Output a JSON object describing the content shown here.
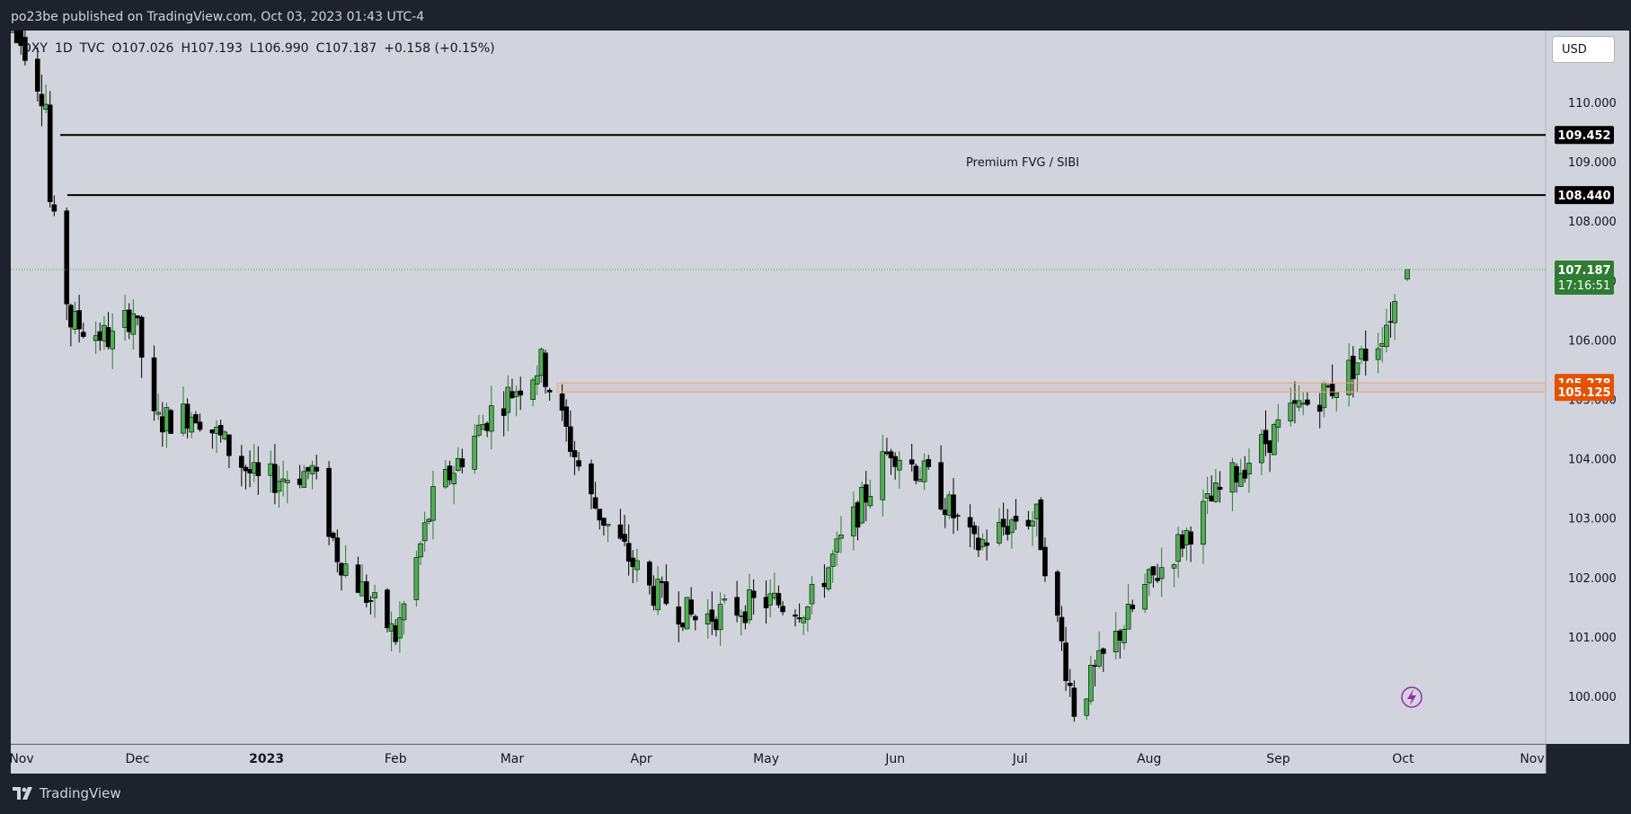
{
  "header": {
    "title": "po23be published on TradingView.com, Oct 03, 2023 01:43 UTC-4"
  },
  "legend": {
    "symbol": "DXY",
    "interval": "1D",
    "source": "TVC",
    "open": "O107.026",
    "high": "H107.193",
    "low": "L106.990",
    "close": "C107.187",
    "change": "+0.158 (+0.15%)"
  },
  "currency_button": "USD",
  "footer": {
    "brand": "TradingView"
  },
  "colors": {
    "background": "#d1d4dc",
    "frame": "#1e222d",
    "bull": "#4caf50",
    "bear": "#000000",
    "current_price": "#2e7d32",
    "zone": "#e65100",
    "level": "#000000"
  },
  "chart_data": {
    "type": "candlestick",
    "symbol": "DXY",
    "timeframe": "1D",
    "y_ticks": [
      "100.000",
      "101.000",
      "102.000",
      "103.000",
      "104.000",
      "105.000",
      "106.000",
      "107.000",
      "108.000",
      "109.000",
      "110.000"
    ],
    "x_ticks": [
      "Nov",
      "Dec",
      "2023",
      "Feb",
      "Mar",
      "Apr",
      "May",
      "Jun",
      "Jul",
      "Aug",
      "Sep",
      "Oct",
      "Nov"
    ],
    "ylim": [
      99.2,
      111.4
    ],
    "levels": [
      {
        "name": "fvg-top",
        "value": 109.452,
        "label": "109.452"
      },
      {
        "name": "fvg-bottom",
        "value": 108.44,
        "label": "108.440"
      }
    ],
    "zone": {
      "top": 105.278,
      "bottom": 105.125,
      "top_label": "105.278",
      "bottom_label": "105.125"
    },
    "annotation": "Premium FVG / SIBI",
    "current_price": {
      "value": 107.187,
      "label": "107.187",
      "countdown": "17:16:51"
    },
    "monthly_path": [
      [
        "2022-11-01",
        111.5
      ],
      [
        "2022-11-09",
        110.0
      ],
      [
        "2022-11-10",
        108.3
      ],
      [
        "2022-11-15",
        106.3
      ],
      [
        "2022-11-25",
        106.0
      ],
      [
        "2022-11-30",
        106.5
      ],
      [
        "2022-12-05",
        104.6
      ],
      [
        "2022-12-15",
        104.8
      ],
      [
        "2022-12-30",
        103.6
      ],
      [
        "2023-01-12",
        103.8
      ],
      [
        "2023-01-18",
        102.4
      ],
      [
        "2023-02-01",
        101.0
      ],
      [
        "2023-02-10",
        103.3
      ],
      [
        "2023-02-24",
        104.8
      ],
      [
        "2023-03-08",
        105.6
      ],
      [
        "2023-03-20",
        103.3
      ],
      [
        "2023-04-03",
        101.8
      ],
      [
        "2023-04-14",
        101.3
      ],
      [
        "2023-05-01",
        101.6
      ],
      [
        "2023-05-11",
        101.5
      ],
      [
        "2023-05-31",
        104.2
      ],
      [
        "2023-06-10",
        103.6
      ],
      [
        "2023-06-20",
        102.5
      ],
      [
        "2023-06-30",
        103.0
      ],
      [
        "2023-07-05",
        103.0
      ],
      [
        "2023-07-14",
        99.8
      ],
      [
        "2023-07-31",
        101.8
      ],
      [
        "2023-08-15",
        103.2
      ],
      [
        "2023-08-25",
        104.0
      ],
      [
        "2023-09-05",
        104.8
      ],
      [
        "2023-09-14",
        105.2
      ],
      [
        "2023-09-25",
        106.0
      ],
      [
        "2023-10-02",
        107.1
      ]
    ]
  }
}
